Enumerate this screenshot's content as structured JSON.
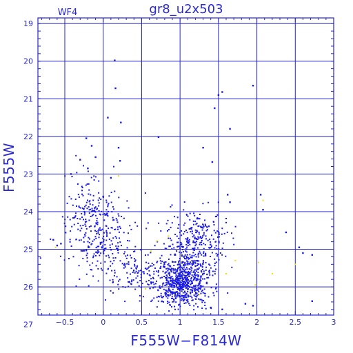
{
  "chart_data": {
    "type": "scatter",
    "title": "gr8_u2x503",
    "panel_label": "WF4",
    "xlabel": "F555W−F814W",
    "ylabel": "F555W",
    "xlim": [
      -0.85,
      3.0
    ],
    "ylim": [
      26.75,
      18.85
    ],
    "y_inverted": true,
    "grid": true,
    "x_ticks": [
      -0.5,
      0,
      0.5,
      1,
      1.5,
      2,
      2.5,
      3
    ],
    "x_tick_labels": [
      "−0.5",
      "0",
      "0.5",
      "1",
      "1.5",
      "2",
      "2.5",
      "3"
    ],
    "y_ticks": [
      19,
      20,
      21,
      22,
      23,
      24,
      25,
      26,
      27
    ],
    "y_tick_labels": [
      "19",
      "20",
      "21",
      "22",
      "23",
      "24",
      "25",
      "26",
      "27"
    ],
    "colors": {
      "main": "#1a1ae6",
      "faint": "#f2e000",
      "frame": "#2222cc",
      "text": "#2a2ad0"
    },
    "series": [
      {
        "marker": "dot",
        "color": "#1a1ae6",
        "points": [
          [
            0.15,
            19.98
          ],
          [
            0.16,
            20.72
          ],
          [
            0.23,
            21.63
          ],
          [
            0.06,
            21.5
          ],
          [
            -0.22,
            22.05
          ],
          [
            -0.15,
            22.25
          ],
          [
            -0.1,
            22.55
          ],
          [
            -0.3,
            22.62
          ],
          [
            -0.2,
            22.85
          ],
          [
            -0.42,
            23.0
          ],
          [
            0.2,
            22.3
          ],
          [
            0.22,
            22.65
          ],
          [
            0.1,
            23.1
          ],
          [
            0.0,
            23.6
          ],
          [
            0.05,
            24.05
          ],
          [
            0.72,
            22.02
          ],
          [
            1.3,
            22.3
          ],
          [
            1.55,
            20.82
          ],
          [
            1.5,
            20.9
          ],
          [
            1.45,
            21.25
          ],
          [
            1.95,
            20.65
          ],
          [
            1.65,
            21.8
          ],
          [
            1.42,
            22.68
          ],
          [
            1.62,
            23.55
          ],
          [
            1.65,
            23.75
          ],
          [
            2.05,
            23.55
          ],
          [
            2.08,
            23.95
          ],
          [
            2.38,
            24.55
          ],
          [
            2.55,
            24.95
          ],
          [
            2.6,
            25.1
          ],
          [
            2.72,
            25.15
          ],
          [
            1.85,
            26.45
          ],
          [
            1.95,
            26.5
          ],
          [
            2.72,
            26.38
          ],
          [
            1.55,
            26.6
          ],
          [
            1.4,
            26.55
          ],
          [
            -0.65,
            24.75
          ],
          [
            -0.6,
            24.9
          ],
          [
            -0.55,
            24.85
          ]
        ],
        "clusters": [
          {
            "name": "blue-plume",
            "cx": -0.05,
            "cy": 24.6,
            "sx": 0.22,
            "sy": 0.55,
            "n": 260
          },
          {
            "name": "upper-blue",
            "cx": -0.2,
            "cy": 23.7,
            "sx": 0.15,
            "sy": 0.35,
            "n": 70
          },
          {
            "name": "red-clump",
            "cx": 1.02,
            "cy": 25.9,
            "sx": 0.19,
            "sy": 0.33,
            "n": 620
          },
          {
            "name": "red-giant-branch",
            "cx": 1.15,
            "cy": 25.0,
            "sx": 0.2,
            "sy": 0.4,
            "n": 260
          },
          {
            "name": "rgb-upper",
            "cx": 1.3,
            "cy": 24.5,
            "sx": 0.18,
            "sy": 0.3,
            "n": 90
          },
          {
            "name": "faint-blue-tail",
            "cx": 0.4,
            "cy": 25.6,
            "sx": 0.25,
            "sy": 0.3,
            "n": 120
          }
        ]
      },
      {
        "marker": "dot",
        "color": "#f2e000",
        "points": [
          [
            -0.62,
            24.95
          ],
          [
            0.7,
            24.78
          ],
          [
            0.62,
            25.05
          ],
          [
            0.2,
            23.05
          ],
          [
            2.08,
            23.7
          ],
          [
            2.02,
            25.35
          ],
          [
            2.2,
            25.65
          ],
          [
            1.98,
            25.95
          ],
          [
            1.72,
            25.3
          ],
          [
            0.55,
            26.05
          ],
          [
            1.25,
            26.2
          ],
          [
            1.6,
            25.65
          ],
          [
            0.85,
            24.65
          ],
          [
            2.5,
            25.4
          ]
        ]
      }
    ]
  }
}
